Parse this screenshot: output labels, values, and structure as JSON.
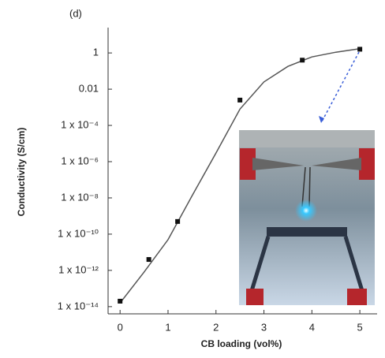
{
  "chart_data": {
    "type": "scatter",
    "annotation": "(d)",
    "x_label": "CB loading (vol%)",
    "y_label": "Conductivity (S/cm)",
    "x": [
      0,
      0.6,
      1.2,
      2.5,
      3.8,
      5
    ],
    "values": [
      2e-14,
      4e-12,
      5e-10,
      0.0025,
      0.4,
      1.6
    ],
    "color": "#111111",
    "fit": {
      "x": [
        0,
        0.5,
        1,
        1.5,
        2,
        2.5,
        3,
        3.5,
        4,
        4.5,
        5
      ],
      "values": [
        1.6e-14,
        8e-13,
        5e-11,
        1.3e-08,
        3e-06,
        0.0008,
        0.025,
        0.18,
        0.6,
        1.1,
        1.7
      ],
      "color": "#555555"
    },
    "xlim": [
      -0.25,
      5.36
    ],
    "xticks": [
      0,
      1,
      2,
      3,
      4,
      5
    ],
    "ylim": [
      4e-15,
      25
    ],
    "log_y": true,
    "yticks": [
      {
        "value": 1e-14,
        "label": "1 x 10⁻¹⁴"
      },
      {
        "value": 1e-12,
        "label": "1 x 10⁻¹²"
      },
      {
        "value": 1e-10,
        "label": "1 x 10⁻¹⁰"
      },
      {
        "value": 1e-08,
        "label": "1 x 10⁻⁸"
      },
      {
        "value": 1e-06,
        "label": "1 x 10⁻⁶"
      },
      {
        "value": 0.0001,
        "label": "1 x 10⁻⁴"
      },
      0.01,
      1
    ]
  }
}
